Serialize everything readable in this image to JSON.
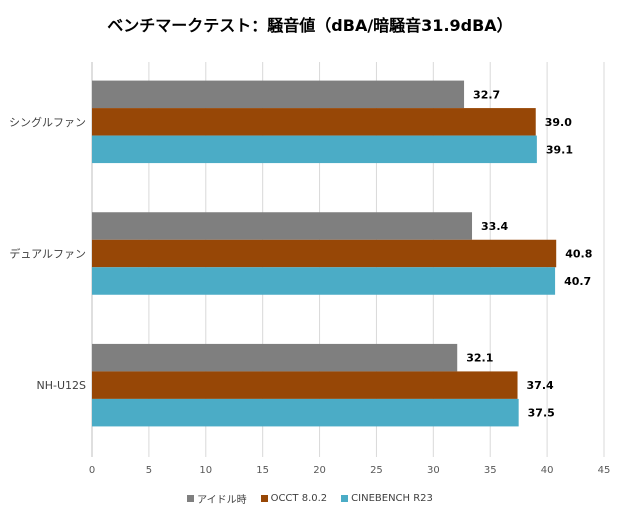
{
  "chart_data": {
    "type": "bar",
    "orientation": "horizontal",
    "title": "ベンチマークテスト：騒音値（dBA/暗騒音31.9dBA）",
    "categories": [
      "シングルファン",
      "デュアルファン",
      "NH-U12S"
    ],
    "series": [
      {
        "name": "アイドル時",
        "color": "#7f7f7f",
        "values": [
          32.7,
          33.4,
          32.1
        ]
      },
      {
        "name": "OCCT 8.0.2",
        "color": "#974706",
        "values": [
          39.0,
          40.8,
          37.4
        ]
      },
      {
        "name": "CINEBENCH R23",
        "color": "#4bacc6",
        "values": [
          39.1,
          40.7,
          37.5
        ]
      }
    ],
    "xlim": [
      0,
      45
    ],
    "xticks": [
      0,
      5,
      10,
      15,
      20,
      25,
      30,
      35,
      40,
      45
    ],
    "grid": true,
    "legend": "bottom",
    "xlabel": "",
    "ylabel": ""
  }
}
